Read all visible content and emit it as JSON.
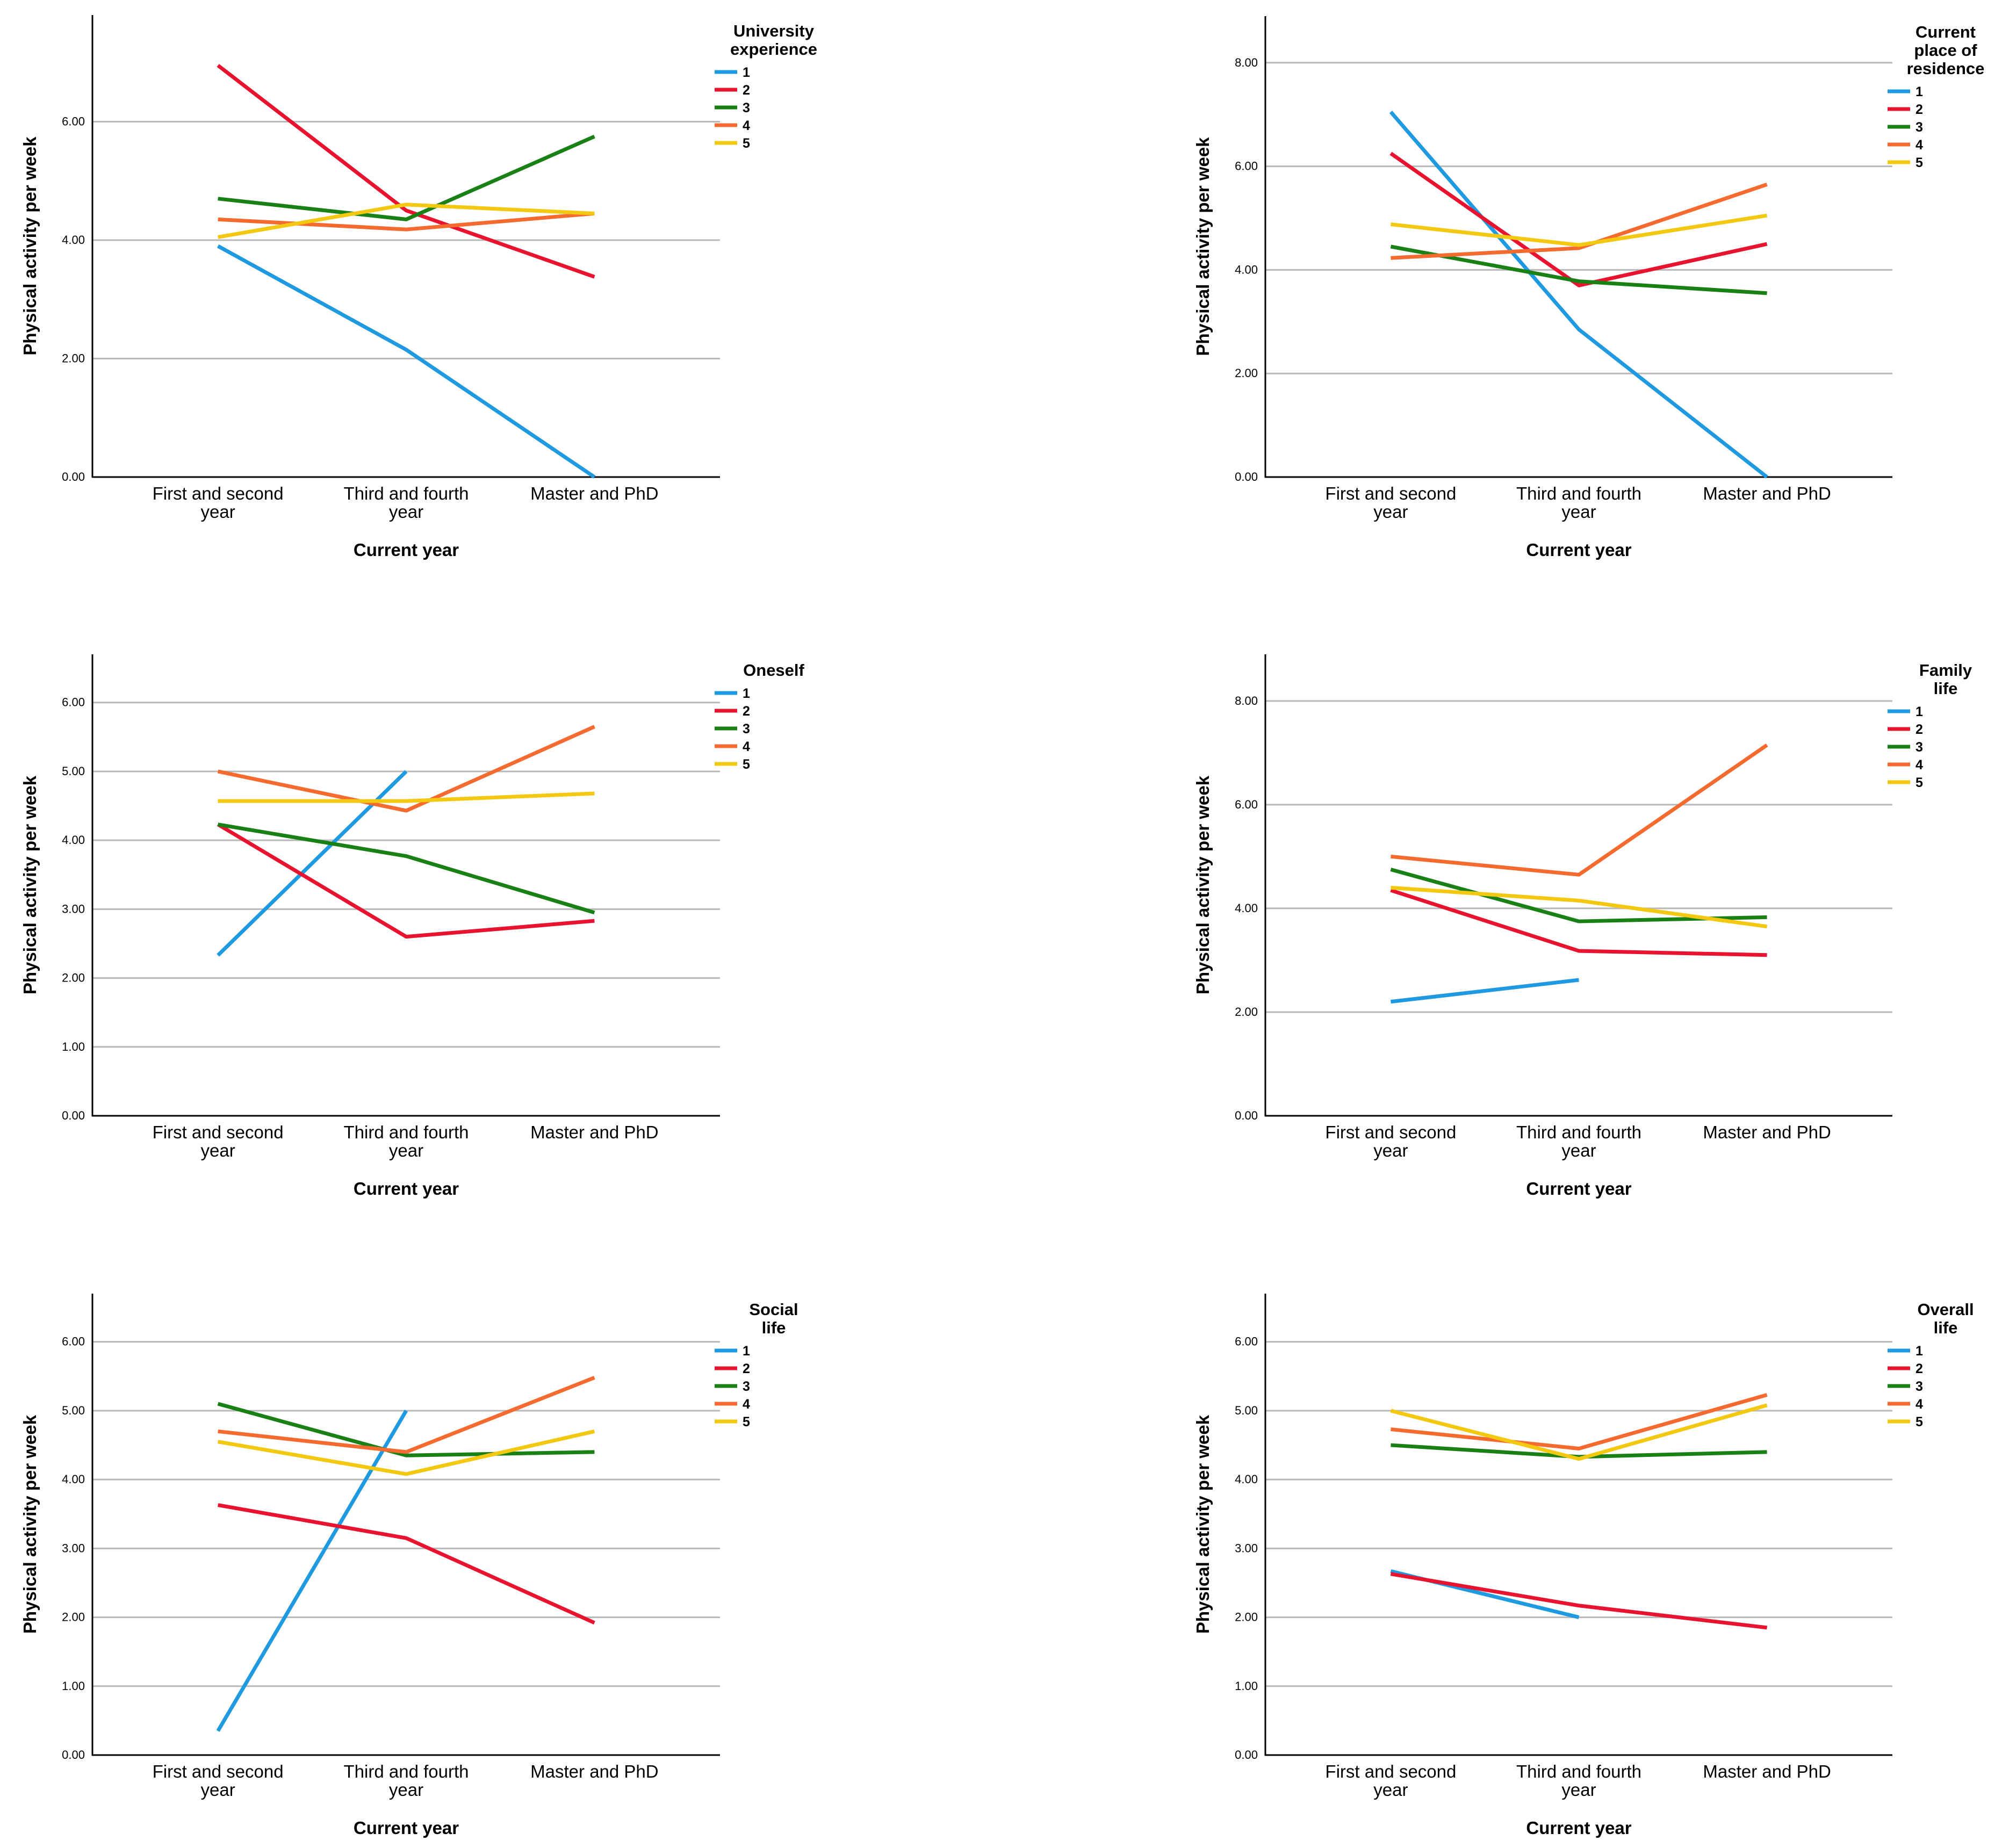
{
  "colors": {
    "1": "#1f9ae0",
    "2": "#e8132f",
    "3": "#198015",
    "4": "#f56a2f",
    "5": "#f2c810",
    "grid": "#b8b8b8",
    "axis": "#000000"
  },
  "chart_data": [
    {
      "type": "line",
      "title": "",
      "xlabel": "Current year",
      "ylabel": "Physical activity per week",
      "categories": [
        [
          "First and second",
          "year"
        ],
        [
          "Third and fourth",
          "year"
        ],
        [
          "Master and PhD"
        ]
      ],
      "ylim": [
        0,
        7.8
      ],
      "yticks": [
        0,
        2,
        4,
        6
      ],
      "ytick_labels": [
        "0.00",
        "2.00",
        "4.00",
        "6.00"
      ],
      "legend_title": [
        "University",
        "experience"
      ],
      "series": [
        {
          "name": "1",
          "values": [
            3.9,
            2.15,
            0.0
          ]
        },
        {
          "name": "2",
          "values": [
            6.95,
            4.5,
            3.38
          ]
        },
        {
          "name": "3",
          "values": [
            4.7,
            4.35,
            5.75
          ]
        },
        {
          "name": "4",
          "values": [
            4.35,
            4.18,
            4.45
          ]
        },
        {
          "name": "5",
          "values": [
            4.05,
            4.6,
            4.45
          ]
        }
      ]
    },
    {
      "type": "line",
      "title": "",
      "xlabel": "Current year",
      "ylabel": "Physical activity per week",
      "categories": [
        [
          "First and second",
          "year"
        ],
        [
          "Third and fourth",
          "year"
        ],
        [
          "Master and PhD"
        ]
      ],
      "ylim": [
        0,
        8.9
      ],
      "yticks": [
        0,
        2,
        4,
        6,
        8
      ],
      "ytick_labels": [
        "0.00",
        "2.00",
        "4.00",
        "6.00",
        "8.00"
      ],
      "legend_title": [
        "Current",
        "place of",
        "residence"
      ],
      "series": [
        {
          "name": "1",
          "values": [
            7.05,
            2.85,
            0.0
          ]
        },
        {
          "name": "2",
          "values": [
            6.25,
            3.7,
            4.5
          ]
        },
        {
          "name": "3",
          "values": [
            4.45,
            3.78,
            3.55
          ]
        },
        {
          "name": "4",
          "values": [
            4.23,
            4.42,
            5.65
          ]
        },
        {
          "name": "5",
          "values": [
            4.88,
            4.48,
            5.05
          ]
        }
      ]
    },
    {
      "type": "line",
      "title": "",
      "xlabel": "Current year",
      "ylabel": "Physical activity per week",
      "categories": [
        [
          "First and second",
          "year"
        ],
        [
          "Third and fourth",
          "year"
        ],
        [
          "Master and PhD"
        ]
      ],
      "ylim": [
        0,
        6.7
      ],
      "yticks": [
        0,
        1,
        2,
        3,
        4,
        5,
        6
      ],
      "ytick_labels": [
        "0.00",
        "1.00",
        "2.00",
        "3.00",
        "4.00",
        "5.00",
        "6.00"
      ],
      "legend_title": [
        "Oneself"
      ],
      "series": [
        {
          "name": "1",
          "values": [
            2.33,
            5.0,
            null
          ]
        },
        {
          "name": "2",
          "values": [
            4.23,
            2.6,
            2.83
          ]
        },
        {
          "name": "3",
          "values": [
            4.23,
            3.77,
            2.95
          ]
        },
        {
          "name": "4",
          "values": [
            5.0,
            4.43,
            5.65
          ]
        },
        {
          "name": "5",
          "values": [
            4.57,
            4.57,
            4.68
          ]
        }
      ]
    },
    {
      "type": "line",
      "title": "",
      "xlabel": "Current year",
      "ylabel": "Physical activity per week",
      "categories": [
        [
          "First and second",
          "year"
        ],
        [
          "Third and fourth",
          "year"
        ],
        [
          "Master and PhD"
        ]
      ],
      "ylim": [
        0,
        8.9
      ],
      "yticks": [
        0,
        2,
        4,
        6,
        8
      ],
      "ytick_labels": [
        "0.00",
        "2.00",
        "4.00",
        "6.00",
        "8.00"
      ],
      "legend_title": [
        "Family",
        "life"
      ],
      "series": [
        {
          "name": "1",
          "values": [
            2.2,
            2.62,
            null
          ]
        },
        {
          "name": "2",
          "values": [
            4.35,
            3.18,
            3.1
          ]
        },
        {
          "name": "3",
          "values": [
            4.75,
            3.75,
            3.83
          ]
        },
        {
          "name": "4",
          "values": [
            5.0,
            4.65,
            7.15
          ]
        },
        {
          "name": "5",
          "values": [
            4.4,
            4.15,
            3.65
          ]
        }
      ]
    },
    {
      "type": "line",
      "title": "",
      "xlabel": "Current year",
      "ylabel": "Physical activity per week",
      "categories": [
        [
          "First and second",
          "year"
        ],
        [
          "Third and fourth",
          "year"
        ],
        [
          "Master and PhD"
        ]
      ],
      "ylim": [
        0,
        6.7
      ],
      "yticks": [
        0,
        1,
        2,
        3,
        4,
        5,
        6
      ],
      "ytick_labels": [
        "0.00",
        "1.00",
        "2.00",
        "3.00",
        "4.00",
        "5.00",
        "6.00"
      ],
      "legend_title": [
        "Social",
        "life"
      ],
      "series": [
        {
          "name": "1",
          "values": [
            0.35,
            5.0,
            null
          ]
        },
        {
          "name": "2",
          "values": [
            3.63,
            3.15,
            1.92
          ]
        },
        {
          "name": "3",
          "values": [
            5.1,
            4.35,
            4.4
          ]
        },
        {
          "name": "4",
          "values": [
            4.7,
            4.4,
            5.48
          ]
        },
        {
          "name": "5",
          "values": [
            4.55,
            4.08,
            4.7
          ]
        }
      ]
    },
    {
      "type": "line",
      "title": "",
      "xlabel": "Current year",
      "ylabel": "Physical activity per week",
      "categories": [
        [
          "First and second",
          "year"
        ],
        [
          "Third and fourth",
          "year"
        ],
        [
          "Master and PhD"
        ]
      ],
      "ylim": [
        0,
        6.7
      ],
      "yticks": [
        0,
        1,
        2,
        3,
        4,
        5,
        6
      ],
      "ytick_labels": [
        "0.00",
        "1.00",
        "2.00",
        "3.00",
        "4.00",
        "5.00",
        "6.00"
      ],
      "legend_title": [
        "Overall",
        "life"
      ],
      "series": [
        {
          "name": "1",
          "values": [
            2.67,
            2.0,
            null
          ]
        },
        {
          "name": "2",
          "values": [
            2.63,
            2.17,
            1.85
          ]
        },
        {
          "name": "3",
          "values": [
            4.5,
            4.33,
            4.4
          ]
        },
        {
          "name": "4",
          "values": [
            4.73,
            4.45,
            5.23
          ]
        },
        {
          "name": "5",
          "values": [
            5.0,
            4.3,
            5.08
          ]
        }
      ]
    }
  ]
}
